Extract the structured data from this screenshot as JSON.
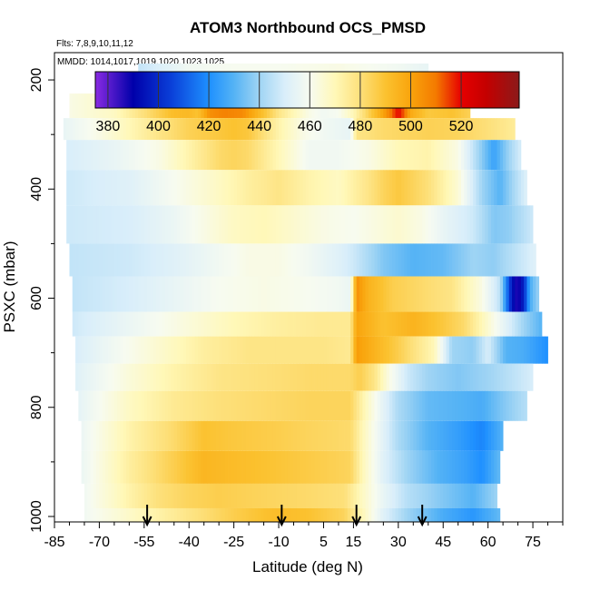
{
  "chart_data": {
    "type": "heatmap",
    "title": "ATOM3 Northbound OCS_PMSD",
    "flights_note": "Flts: 7,8,9,10,11,12",
    "dates_note": "MMDD: 1014,1017,1019,1020,1023,1025",
    "xlabel": "Latitude (deg N)",
    "ylabel": "PSXC (mbar)",
    "xlim": [
      -85,
      85
    ],
    "ylim": [
      1010,
      150
    ],
    "xticks": [
      -85,
      -70,
      -55,
      -40,
      -25,
      -10,
      5,
      15,
      30,
      45,
      60,
      75
    ],
    "xtick_labels": [
      "-85",
      "-70",
      "-55",
      "-40",
      "-25",
      "-10",
      "5",
      "15",
      "30",
      "45",
      "60",
      "75"
    ],
    "yticks": [
      200,
      400,
      600,
      800,
      1000
    ],
    "ytick_labels": [
      "200",
      "400",
      "600",
      "800",
      "1000"
    ],
    "colorbar": {
      "min": 375,
      "max": 543,
      "ticks": [
        380,
        400,
        420,
        440,
        460,
        480,
        500,
        520
      ],
      "tick_labels": [
        "380",
        "400",
        "420",
        "440",
        "460",
        "480",
        "500",
        "520"
      ],
      "stops": [
        {
          "value": 375,
          "color": "#8a2be2"
        },
        {
          "value": 390,
          "color": "#0000aa"
        },
        {
          "value": 405,
          "color": "#0a3fd8"
        },
        {
          "value": 420,
          "color": "#1e90ff"
        },
        {
          "value": 430,
          "color": "#55b3f5"
        },
        {
          "value": 440,
          "color": "#9fd4f4"
        },
        {
          "value": 450,
          "color": "#d9eefa"
        },
        {
          "value": 460,
          "color": "#f7fbf0"
        },
        {
          "value": 470,
          "color": "#fff8b8"
        },
        {
          "value": 480,
          "color": "#fde07a"
        },
        {
          "value": 490,
          "color": "#fbc230"
        },
        {
          "value": 500,
          "color": "#f9a40c"
        },
        {
          "value": 510,
          "color": "#f47a00"
        },
        {
          "value": 520,
          "color": "#e60000"
        },
        {
          "value": 530,
          "color": "#c40000"
        },
        {
          "value": 543,
          "color": "#8b1a1a"
        }
      ]
    },
    "arrows_latitude": [
      -54,
      -9,
      16,
      38
    ],
    "layers": [
      {
        "p_top": 170,
        "p_bot": 225,
        "lat_min": -57,
        "lat_max": 40,
        "profile": [
          [
            -57,
            446
          ],
          [
            -40,
            458
          ],
          [
            -25,
            460
          ],
          [
            -10,
            460
          ],
          [
            10,
            462
          ],
          [
            30,
            458
          ],
          [
            40,
            455
          ]
        ]
      },
      {
        "p_top": 225,
        "p_bot": 270,
        "lat_min": -80,
        "lat_max": 54,
        "profile": [
          [
            -80,
            462
          ],
          [
            -65,
            468
          ],
          [
            -55,
            480
          ],
          [
            -45,
            492
          ],
          [
            -40,
            493
          ],
          [
            -37,
            490
          ],
          [
            -33,
            505
          ],
          [
            -28,
            508
          ],
          [
            -22,
            506
          ],
          [
            -15,
            490
          ],
          [
            -10,
            478
          ],
          [
            -5,
            470
          ],
          [
            0,
            462
          ],
          [
            5,
            458
          ],
          [
            10,
            460
          ],
          [
            15,
            470
          ],
          [
            20,
            485
          ],
          [
            25,
            500
          ],
          [
            28,
            512
          ],
          [
            30,
            520
          ],
          [
            32,
            512
          ],
          [
            34,
            498
          ],
          [
            40,
            488
          ],
          [
            48,
            490
          ],
          [
            54,
            485
          ]
        ]
      },
      {
        "p_top": 270,
        "p_bot": 310,
        "lat_min": -82,
        "lat_max": 69,
        "profile": [
          [
            -82,
            455
          ],
          [
            -70,
            462
          ],
          [
            -60,
            470
          ],
          [
            -50,
            478
          ],
          [
            -40,
            485
          ],
          [
            -30,
            488
          ],
          [
            -25,
            490
          ],
          [
            -20,
            488
          ],
          [
            -10,
            472
          ],
          [
            -2,
            462
          ],
          [
            5,
            458
          ],
          [
            10,
            456
          ],
          [
            14,
            455
          ],
          [
            16,
            478
          ],
          [
            25,
            482
          ],
          [
            40,
            485
          ],
          [
            50,
            484
          ],
          [
            60,
            480
          ],
          [
            69,
            475
          ]
        ]
      },
      {
        "p_top": 310,
        "p_bot": 365,
        "lat_min": -81,
        "lat_max": 71,
        "profile": [
          [
            -81,
            450
          ],
          [
            -65,
            455
          ],
          [
            -50,
            462
          ],
          [
            -40,
            472
          ],
          [
            -30,
            482
          ],
          [
            -25,
            484
          ],
          [
            -20,
            482
          ],
          [
            -10,
            470
          ],
          [
            0,
            458
          ],
          [
            10,
            458
          ],
          [
            20,
            462
          ],
          [
            30,
            470
          ],
          [
            40,
            472
          ],
          [
            50,
            462
          ],
          [
            57,
            440
          ],
          [
            62,
            425
          ],
          [
            67,
            440
          ],
          [
            71,
            450
          ]
        ]
      },
      {
        "p_top": 365,
        "p_bot": 430,
        "lat_min": -81,
        "lat_max": 73,
        "profile": [
          [
            -81,
            448
          ],
          [
            -60,
            452
          ],
          [
            -45,
            460
          ],
          [
            -30,
            468
          ],
          [
            -20,
            474
          ],
          [
            -10,
            478
          ],
          [
            0,
            472
          ],
          [
            10,
            468
          ],
          [
            20,
            478
          ],
          [
            25,
            484
          ],
          [
            30,
            488
          ],
          [
            40,
            480
          ],
          [
            50,
            465
          ],
          [
            58,
            440
          ],
          [
            64,
            430
          ],
          [
            68,
            440
          ],
          [
            73,
            452
          ]
        ]
      },
      {
        "p_top": 430,
        "p_bot": 500,
        "lat_min": -81,
        "lat_max": 75,
        "profile": [
          [
            -81,
            448
          ],
          [
            -60,
            450
          ],
          [
            -45,
            456
          ],
          [
            -35,
            462
          ],
          [
            -25,
            468
          ],
          [
            -15,
            470
          ],
          [
            -5,
            466
          ],
          [
            5,
            462
          ],
          [
            15,
            460
          ],
          [
            25,
            464
          ],
          [
            30,
            466
          ],
          [
            38,
            462
          ],
          [
            45,
            455
          ],
          [
            55,
            448
          ],
          [
            62,
            436
          ],
          [
            67,
            438
          ],
          [
            75,
            448
          ]
        ]
      },
      {
        "p_top": 500,
        "p_bot": 560,
        "lat_min": -80,
        "lat_max": 76,
        "profile": [
          [
            -80,
            446
          ],
          [
            -60,
            448
          ],
          [
            -45,
            452
          ],
          [
            -30,
            458
          ],
          [
            -20,
            462
          ],
          [
            -10,
            462
          ],
          [
            0,
            458
          ],
          [
            10,
            452
          ],
          [
            15,
            448
          ],
          [
            25,
            436
          ],
          [
            35,
            430
          ],
          [
            45,
            432
          ],
          [
            55,
            440
          ],
          [
            62,
            438
          ],
          [
            68,
            444
          ],
          [
            76,
            452
          ]
        ]
      },
      {
        "p_top": 560,
        "p_bot": 625,
        "lat_min": -79,
        "lat_max": 77,
        "profile": [
          [
            -79,
            446
          ],
          [
            -60,
            450
          ],
          [
            -45,
            455
          ],
          [
            -30,
            460
          ],
          [
            -15,
            462
          ],
          [
            0,
            460
          ],
          [
            10,
            458
          ],
          [
            14,
            456
          ],
          [
            16,
            505
          ],
          [
            20,
            495
          ],
          [
            28,
            486
          ],
          [
            38,
            482
          ],
          [
            48,
            478
          ],
          [
            58,
            462
          ],
          [
            64,
            445
          ],
          [
            68,
            395
          ],
          [
            70,
            385
          ],
          [
            72,
            400
          ],
          [
            74,
            428
          ],
          [
            77,
            440
          ]
        ]
      },
      {
        "p_top": 625,
        "p_bot": 670,
        "lat_min": -79,
        "lat_max": 78,
        "profile": [
          [
            -79,
            448
          ],
          [
            -60,
            456
          ],
          [
            -40,
            464
          ],
          [
            -25,
            470
          ],
          [
            -10,
            474
          ],
          [
            5,
            476
          ],
          [
            14,
            476
          ],
          [
            16,
            500
          ],
          [
            25,
            490
          ],
          [
            35,
            495
          ],
          [
            45,
            488
          ],
          [
            52,
            482
          ],
          [
            58,
            470
          ],
          [
            65,
            455
          ],
          [
            72,
            440
          ],
          [
            78,
            430
          ]
        ]
      },
      {
        "p_top": 670,
        "p_bot": 720,
        "lat_min": -78,
        "lat_max": 80,
        "profile": [
          [
            -78,
            450
          ],
          [
            -65,
            458
          ],
          [
            -50,
            466
          ],
          [
            -35,
            474
          ],
          [
            -20,
            478
          ],
          [
            -5,
            478
          ],
          [
            5,
            478
          ],
          [
            14,
            476
          ],
          [
            16,
            502
          ],
          [
            22,
            495
          ],
          [
            30,
            486
          ],
          [
            36,
            478
          ],
          [
            42,
            470
          ],
          [
            48,
            440
          ],
          [
            55,
            438
          ],
          [
            60,
            450
          ],
          [
            66,
            430
          ],
          [
            72,
            428
          ],
          [
            80,
            420
          ]
        ]
      },
      {
        "p_top": 720,
        "p_bot": 770,
        "lat_min": -78,
        "lat_max": 75,
        "profile": [
          [
            -78,
            452
          ],
          [
            -60,
            464
          ],
          [
            -45,
            472
          ],
          [
            -30,
            478
          ],
          [
            -15,
            480
          ],
          [
            0,
            482
          ],
          [
            14,
            482
          ],
          [
            17,
            486
          ],
          [
            22,
            478
          ],
          [
            27,
            462
          ],
          [
            33,
            448
          ],
          [
            40,
            440
          ],
          [
            50,
            436
          ],
          [
            60,
            440
          ],
          [
            68,
            445
          ],
          [
            75,
            450
          ]
        ]
      },
      {
        "p_top": 770,
        "p_bot": 825,
        "lat_min": -77,
        "lat_max": 73,
        "profile": [
          [
            -77,
            454
          ],
          [
            -60,
            468
          ],
          [
            -45,
            476
          ],
          [
            -30,
            480
          ],
          [
            -15,
            482
          ],
          [
            0,
            484
          ],
          [
            14,
            484
          ],
          [
            18,
            472
          ],
          [
            24,
            456
          ],
          [
            30,
            442
          ],
          [
            40,
            432
          ],
          [
            50,
            430
          ],
          [
            58,
            428
          ],
          [
            65,
            436
          ],
          [
            73,
            444
          ]
        ]
      },
      {
        "p_top": 825,
        "p_bot": 880,
        "lat_min": -76,
        "lat_max": 65,
        "profile": [
          [
            -76,
            456
          ],
          [
            -60,
            472
          ],
          [
            -45,
            482
          ],
          [
            -35,
            490
          ],
          [
            -25,
            488
          ],
          [
            -10,
            486
          ],
          [
            0,
            484
          ],
          [
            14,
            482
          ],
          [
            18,
            470
          ],
          [
            24,
            455
          ],
          [
            30,
            442
          ],
          [
            40,
            430
          ],
          [
            50,
            424
          ],
          [
            58,
            418
          ],
          [
            65,
            430
          ]
        ]
      },
      {
        "p_top": 880,
        "p_bot": 940,
        "lat_min": -76,
        "lat_max": 64,
        "profile": [
          [
            -76,
            456
          ],
          [
            -60,
            474
          ],
          [
            -45,
            486
          ],
          [
            -35,
            494
          ],
          [
            -25,
            492
          ],
          [
            -15,
            490
          ],
          [
            -5,
            488
          ],
          [
            5,
            486
          ],
          [
            14,
            484
          ],
          [
            18,
            470
          ],
          [
            25,
            452
          ],
          [
            33,
            440
          ],
          [
            43,
            430
          ],
          [
            52,
            425
          ],
          [
            58,
            420
          ],
          [
            64,
            432
          ]
        ]
      },
      {
        "p_top": 940,
        "p_bot": 985,
        "lat_min": -75,
        "lat_max": 63,
        "profile": [
          [
            -75,
            458
          ],
          [
            -60,
            472
          ],
          [
            -50,
            480
          ],
          [
            -40,
            484
          ],
          [
            -30,
            486
          ],
          [
            -15,
            484
          ],
          [
            0,
            482
          ],
          [
            12,
            480
          ],
          [
            18,
            468
          ],
          [
            25,
            455
          ],
          [
            33,
            444
          ],
          [
            45,
            436
          ],
          [
            55,
            430
          ],
          [
            63,
            440
          ]
        ]
      },
      {
        "p_top": 985,
        "p_bot": 1010,
        "lat_min": -75,
        "lat_max": 64,
        "profile": [
          [
            -75,
            458
          ],
          [
            -55,
            470
          ],
          [
            -40,
            478
          ],
          [
            -25,
            486
          ],
          [
            -10,
            492
          ],
          [
            0,
            490
          ],
          [
            12,
            484
          ],
          [
            18,
            470
          ],
          [
            25,
            452
          ],
          [
            33,
            440
          ],
          [
            45,
            428
          ],
          [
            55,
            422
          ],
          [
            64,
            432
          ]
        ]
      }
    ]
  }
}
